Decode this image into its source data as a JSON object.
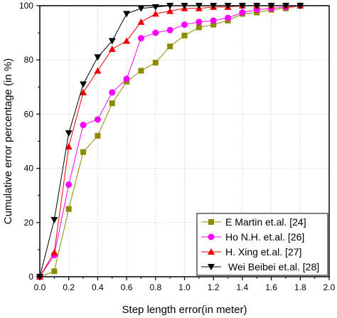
{
  "chart_data": {
    "type": "line",
    "title": "",
    "xlabel": "Step length error(in meter)",
    "ylabel": "Cumulative error percentage (in %)",
    "xlim": [
      0.0,
      2.0
    ],
    "ylim": [
      0,
      100
    ],
    "x_ticks": [
      "0.0",
      "0.2",
      "0.4",
      "0.6",
      "0.8",
      "1.0",
      "1.2",
      "1.4",
      "1.6",
      "1.8",
      "2.0"
    ],
    "y_ticks": [
      "0",
      "20",
      "40",
      "60",
      "80",
      "100"
    ],
    "grid": true,
    "legend_position": "bottom-right",
    "series": [
      {
        "name": "E Martin et.al. [24]",
        "color": "#8b8b00",
        "marker": "square",
        "x": [
          0.0,
          0.1,
          0.2,
          0.3,
          0.4,
          0.5,
          0.6,
          0.7,
          0.8,
          0.9,
          1.0,
          1.1,
          1.2,
          1.3,
          1.4,
          1.5,
          1.6,
          1.7,
          1.8
        ],
        "y": [
          0,
          2,
          25,
          46,
          52,
          64,
          72,
          76,
          79,
          85,
          89,
          92,
          93,
          94.5,
          97,
          97.5,
          98.5,
          99,
          100
        ]
      },
      {
        "name": "Ho N.H. et.al. [26]",
        "color": "#ff00ff",
        "marker": "circle",
        "x": [
          0.0,
          0.1,
          0.2,
          0.3,
          0.4,
          0.5,
          0.6,
          0.7,
          0.8,
          0.9,
          1.0,
          1.1,
          1.2,
          1.3,
          1.4,
          1.5,
          1.6,
          1.7,
          1.8
        ],
        "y": [
          0,
          8,
          34,
          56,
          58,
          68,
          73,
          88,
          90,
          91,
          93,
          94,
          94.5,
          95.5,
          97.5,
          98.5,
          99,
          99.5,
          100
        ]
      },
      {
        "name": "H. Xing et.al. [27]",
        "color": "#ee0000",
        "marker": "triangle-up",
        "x": [
          0.0,
          0.1,
          0.2,
          0.3,
          0.4,
          0.5,
          0.6,
          0.7,
          0.8,
          0.9,
          1.0,
          1.1,
          1.2,
          1.3,
          1.4,
          1.5,
          1.6,
          1.7,
          1.8
        ],
        "y": [
          0,
          9,
          48,
          68,
          76,
          84,
          87,
          94,
          97,
          98,
          99,
          99,
          99.5,
          99.5,
          100,
          100,
          100,
          100,
          100
        ]
      },
      {
        "name": "Wei Beibei et.al. [28]",
        "color": "#000000",
        "marker": "triangle-down",
        "x": [
          0.0,
          0.1,
          0.2,
          0.3,
          0.4,
          0.5,
          0.6,
          0.7,
          0.8,
          0.9,
          1.0,
          1.1,
          1.2,
          1.3,
          1.4,
          1.5,
          1.6,
          1.7,
          1.8
        ],
        "y": [
          0,
          21,
          53,
          71,
          81,
          87,
          97,
          99,
          99.5,
          100,
          100,
          100,
          100,
          100,
          100,
          100,
          100,
          100,
          100
        ]
      }
    ]
  }
}
